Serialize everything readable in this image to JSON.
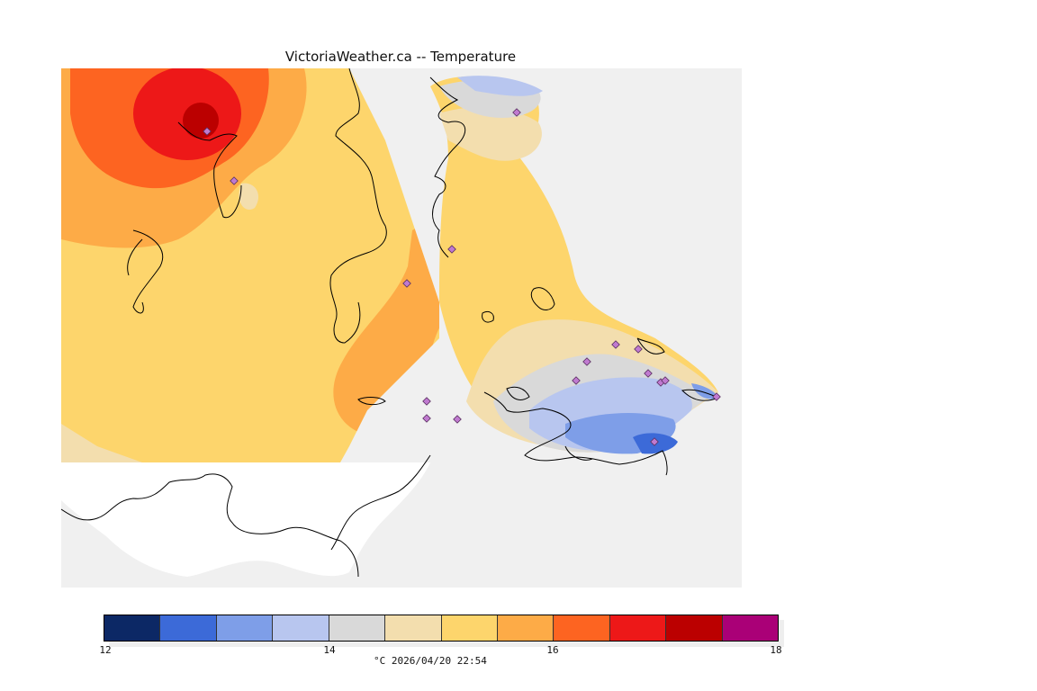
{
  "title": "VictoriaWeather.ca -- Temperature",
  "legend": {
    "min": 12,
    "max": 18,
    "tick_labels": [
      "12",
      "14",
      "16",
      "18"
    ],
    "colors": [
      "#0c2865",
      "#3c6ad8",
      "#7e9ee8",
      "#b8c6ef",
      "#d9d9d9",
      "#f3deae",
      "#fdd56c",
      "#fdab47",
      "#fd6421",
      "#ed1818",
      "#bb0000",
      "#aa0077"
    ]
  },
  "caption": "°C  2026/04/20 22:54",
  "map": {
    "background_no_data": "#f0f0f0",
    "land_outside_domain": "#ffffff",
    "station_marker_color": "#c07ad0"
  }
}
